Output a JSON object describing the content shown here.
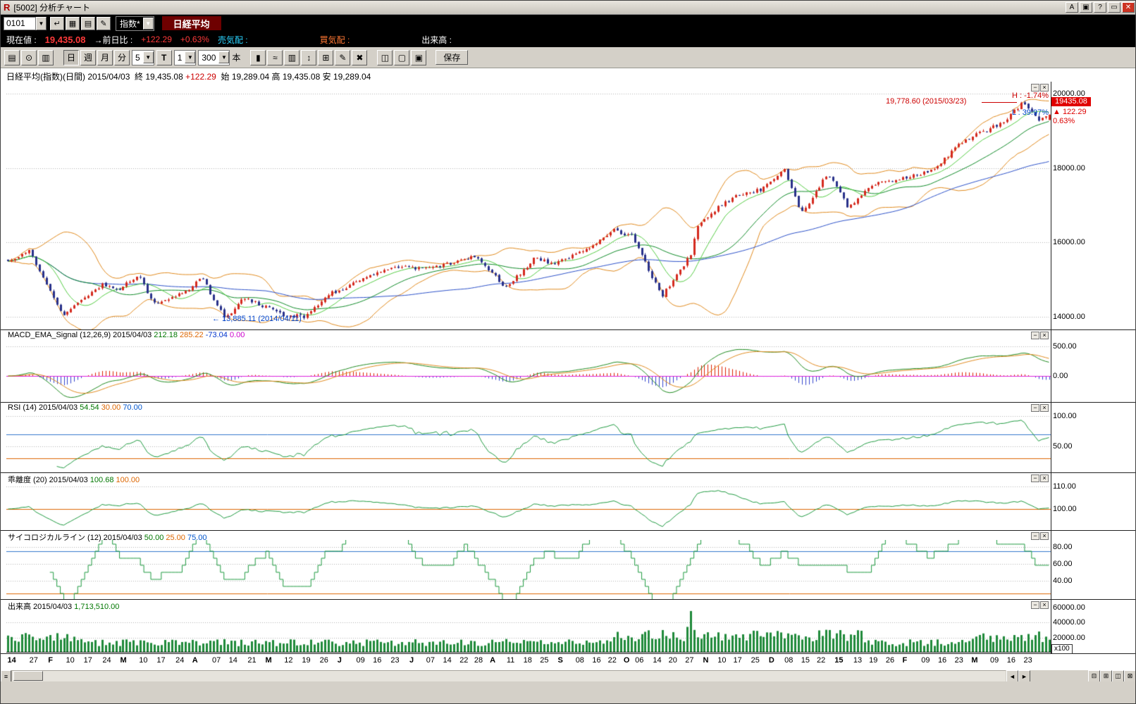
{
  "window": {
    "title": "[5002]  分析チャート",
    "title_buttons": [
      {
        "name": "font-size-button",
        "label": "A"
      },
      {
        "name": "duplicate-window-button",
        "label": "▣"
      },
      {
        "name": "help-button",
        "label": "?"
      },
      {
        "name": "maximize-button",
        "label": "▭"
      },
      {
        "name": "close-button",
        "label": "✕"
      }
    ]
  },
  "symbol_bar": {
    "code": "0101",
    "icon_buttons": [
      {
        "name": "enter-symbol-button",
        "glyph": "↵"
      },
      {
        "name": "board-button",
        "glyph": "▦"
      },
      {
        "name": "list-button",
        "glyph": "▤"
      },
      {
        "name": "edit-button",
        "glyph": "✎"
      }
    ],
    "market_select": "指数*",
    "symbol_name": "日経平均"
  },
  "quote_bar": {
    "current_label": "現在値 :",
    "current_value": "19,435.08",
    "change_label": "→前日比 :",
    "change_value": "+122.29",
    "change_percent": "+0.63%",
    "ask_label": "売気配 :",
    "ask_value": "",
    "bid_label": "買気配 :",
    "bid_value": "",
    "volume_label": "出来高 :",
    "volume_value": ""
  },
  "chart_toolbar": {
    "left_buttons": [
      {
        "name": "print-button",
        "glyph": "▤"
      },
      {
        "name": "zoom-button",
        "glyph": "⊙"
      },
      {
        "name": "settings-button",
        "glyph": "▥"
      }
    ],
    "period_buttons": [
      {
        "name": "period-day-button",
        "label": "日",
        "active": true
      },
      {
        "name": "period-week-button",
        "label": "週",
        "active": false
      },
      {
        "name": "period-month-button",
        "label": "月",
        "active": false
      },
      {
        "name": "period-minute-button",
        "label": "分",
        "active": false
      }
    ],
    "minute_select": "5",
    "tick_button": "T",
    "interval_select": "1",
    "bars_select": "300",
    "bars_unit": "本",
    "type_buttons": [
      {
        "name": "candle-type-button",
        "glyph": "▮"
      },
      {
        "name": "line-type-button",
        "glyph": "≈"
      },
      {
        "name": "bar-type-button",
        "glyph": "▥"
      },
      {
        "name": "highlow-type-button",
        "glyph": "↕"
      },
      {
        "name": "grid-toggle-button",
        "glyph": "⊞"
      },
      {
        "name": "draw-button",
        "glyph": "✎"
      },
      {
        "name": "erase-button",
        "glyph": "✖"
      }
    ],
    "right_buttons": [
      {
        "name": "layout-button",
        "glyph": "◫"
      },
      {
        "name": "new-page-button",
        "glyph": "▢"
      },
      {
        "name": "copy-page-button",
        "glyph": "▣"
      }
    ],
    "save_button": "保存"
  },
  "panel_buttons": {
    "minimize": "−",
    "close": "×"
  },
  "panel_headers": [
    {
      "segments": [
        {
          "t": "日経平均(指数)(日間) 2015/04/03  ",
          "c": "#000000"
        },
        {
          "t": "終 19,435.08 ",
          "c": "#000000"
        },
        {
          "t": "+122.29",
          "c": "#cc0000"
        },
        {
          "t": "  始 19,289.04 高 19,435.08 安 19,289.04",
          "c": "#000000"
        }
      ]
    },
    {
      "segments": [
        {
          "t": "MACD_EMA_Signal (12,26,9) 2015/04/03 ",
          "c": "#000000"
        },
        {
          "t": "212.18 ",
          "c": "#007700"
        },
        {
          "t": "285.22 ",
          "c": "#dd6600"
        },
        {
          "t": "-73.04 ",
          "c": "#0033cc"
        },
        {
          "t": "0.00",
          "c": "#cc00cc"
        }
      ]
    },
    {
      "segments": [
        {
          "t": "RSI (14) 2015/04/03 ",
          "c": "#000000"
        },
        {
          "t": "54.54 ",
          "c": "#007700"
        },
        {
          "t": "30.00 ",
          "c": "#dd6600"
        },
        {
          "t": "70.00",
          "c": "#0055cc"
        }
      ]
    },
    {
      "segments": [
        {
          "t": "乖離度 (20) 2015/04/03 ",
          "c": "#000000"
        },
        {
          "t": "100.68 ",
          "c": "#007700"
        },
        {
          "t": "100.00",
          "c": "#dd6600"
        }
      ]
    },
    {
      "segments": [
        {
          "t": "サイコロジカルライン (12) 2015/04/03 ",
          "c": "#000000"
        },
        {
          "t": "50.00 ",
          "c": "#007700"
        },
        {
          "t": "25.00 ",
          "c": "#dd6600"
        },
        {
          "t": "75.00",
          "c": "#0055cc"
        }
      ]
    },
    {
      "segments": [
        {
          "t": "出来高 2015/04/03 ",
          "c": "#000000"
        },
        {
          "t": "1,713,510.00",
          "c": "#007700"
        }
      ]
    }
  ],
  "annotations": {
    "high_low": {
      "high_label": "H : -1.74%",
      "low_label": "L : 39.97%",
      "high_color": "#cc0000",
      "low_color": "#0044cc"
    },
    "peak": {
      "text": "19,778.60 (2015/03/23)",
      "color": "#cc0000"
    },
    "trough": {
      "text": "← 13,885.11 (2014/04/11)",
      "color": "#0044cc"
    },
    "last_price": {
      "value": "19435.08",
      "change": "▲ 122.29",
      "percent": "0.63%",
      "bg": "#e00000",
      "fg": "#dd0000"
    }
  },
  "x_axis": {
    "labels": [
      [
        "14",
        0.001,
        1
      ],
      [
        "27",
        0.022,
        0
      ],
      [
        "F",
        0.04,
        1
      ],
      [
        "10",
        0.057,
        0
      ],
      [
        "17",
        0.074,
        0
      ],
      [
        "24",
        0.092,
        0
      ],
      [
        "M",
        0.109,
        1
      ],
      [
        "10",
        0.127,
        0
      ],
      [
        "17",
        0.144,
        0
      ],
      [
        "24",
        0.162,
        0
      ],
      [
        "A",
        0.178,
        1
      ],
      [
        "07",
        0.197,
        0
      ],
      [
        "14",
        0.213,
        0
      ],
      [
        "21",
        0.231,
        0
      ],
      [
        "M",
        0.248,
        1
      ],
      [
        "12",
        0.266,
        0
      ],
      [
        "19",
        0.283,
        0
      ],
      [
        "26",
        0.3,
        0
      ],
      [
        "J",
        0.317,
        1
      ],
      [
        "09",
        0.335,
        0
      ],
      [
        "16",
        0.351,
        0
      ],
      [
        "23",
        0.368,
        0
      ],
      [
        "J",
        0.386,
        1
      ],
      [
        "07",
        0.402,
        0
      ],
      [
        "14",
        0.418,
        0
      ],
      [
        "22",
        0.434,
        0
      ],
      [
        "28",
        0.448,
        0
      ],
      [
        "A",
        0.463,
        1
      ],
      [
        "11",
        0.479,
        0
      ],
      [
        "18",
        0.495,
        0
      ],
      [
        "25",
        0.511,
        0
      ],
      [
        "S",
        0.528,
        1
      ],
      [
        "08",
        0.545,
        0
      ],
      [
        "16",
        0.561,
        0
      ],
      [
        "22",
        0.576,
        0
      ],
      [
        "O",
        0.591,
        1
      ],
      [
        "06",
        0.602,
        0
      ],
      [
        "14",
        0.619,
        0
      ],
      [
        "20",
        0.634,
        0
      ],
      [
        "27",
        0.65,
        0
      ],
      [
        "N",
        0.667,
        1
      ],
      [
        "10",
        0.681,
        0
      ],
      [
        "17",
        0.696,
        0
      ],
      [
        "25",
        0.713,
        0
      ],
      [
        "D",
        0.73,
        1
      ],
      [
        "08",
        0.745,
        0
      ],
      [
        "15",
        0.761,
        0
      ],
      [
        "22",
        0.776,
        0
      ],
      [
        "15",
        0.793,
        1
      ],
      [
        "13",
        0.811,
        0
      ],
      [
        "19",
        0.826,
        0
      ],
      [
        "26",
        0.842,
        0
      ],
      [
        "F",
        0.858,
        1
      ],
      [
        "09",
        0.876,
        0
      ],
      [
        "16",
        0.892,
        0
      ],
      [
        "23",
        0.908,
        0
      ],
      [
        "M",
        0.924,
        1
      ],
      [
        "09",
        0.942,
        0
      ],
      [
        "16",
        0.958,
        0
      ],
      [
        "23",
        0.974,
        0
      ]
    ]
  },
  "scrollbar": {
    "grip": "≡",
    "nav_buttons": [
      {
        "name": "scroll-left-button",
        "glyph": "◄"
      },
      {
        "name": "scroll-right-button",
        "glyph": "►"
      }
    ],
    "corner_buttons": [
      {
        "name": "strip-minimize-button",
        "glyph": "⊟"
      },
      {
        "name": "strip-tile-button",
        "glyph": "⊞"
      },
      {
        "name": "strip-cascade-button",
        "glyph": "◫"
      },
      {
        "name": "strip-close-button",
        "glyph": "⊠"
      }
    ]
  },
  "chart_data": {
    "type": "candlestick",
    "symbol": "日経平均",
    "timeframe": "日間",
    "date": "2015/04/03",
    "bars": 300,
    "ohlc_last": {
      "open": 19289.04,
      "high": 19435.08,
      "low": 19289.04,
      "close": 19435.08,
      "change": 122.29,
      "change_pct": 0.63
    },
    "price_anchors": [
      [
        0.001,
        15450
      ],
      [
        0.02,
        15800
      ],
      [
        0.052,
        14010
      ],
      [
        0.075,
        14550
      ],
      [
        0.09,
        14860
      ],
      [
        0.105,
        14700
      ],
      [
        0.125,
        15120
      ],
      [
        0.14,
        14350
      ],
      [
        0.155,
        14450
      ],
      [
        0.172,
        14700
      ],
      [
        0.186,
        15050
      ],
      [
        0.208,
        13940
      ],
      [
        0.225,
        14510
      ],
      [
        0.245,
        14300
      ],
      [
        0.262,
        14070
      ],
      [
        0.285,
        14000
      ],
      [
        0.31,
        14630
      ],
      [
        0.34,
        15000
      ],
      [
        0.37,
        15360
      ],
      [
        0.395,
        15300
      ],
      [
        0.42,
        15400
      ],
      [
        0.45,
        15620
      ],
      [
        0.478,
        14790
      ],
      [
        0.505,
        15560
      ],
      [
        0.525,
        15430
      ],
      [
        0.555,
        15780
      ],
      [
        0.582,
        16340
      ],
      [
        0.6,
        16150
      ],
      [
        0.628,
        14550
      ],
      [
        0.645,
        15250
      ],
      [
        0.655,
        15650
      ],
      [
        0.662,
        16420
      ],
      [
        0.68,
        16900
      ],
      [
        0.7,
        17250
      ],
      [
        0.727,
        17460
      ],
      [
        0.745,
        18000
      ],
      [
        0.762,
        16780
      ],
      [
        0.787,
        17850
      ],
      [
        0.8,
        17300
      ],
      [
        0.807,
        16920
      ],
      [
        0.826,
        17510
      ],
      [
        0.85,
        17670
      ],
      [
        0.886,
        17900
      ],
      [
        0.92,
        18780
      ],
      [
        0.94,
        19000
      ],
      [
        0.957,
        19250
      ],
      [
        0.974,
        19750
      ],
      [
        0.982,
        19560
      ],
      [
        0.99,
        19290
      ],
      [
        1.0,
        19435
      ]
    ],
    "forced": {
      "low": {
        "f": 0.208,
        "value": 13885.11,
        "label": "13,885.11 (2014/04/11)"
      },
      "high": {
        "f": 0.974,
        "value": 19778.6,
        "label": "19,778.60 (2015/03/23)"
      }
    },
    "panels": [
      {
        "id": "price",
        "ylim": [
          13660,
          20320
        ],
        "yticks": [
          {
            "v": 20000,
            "label": "20000.00"
          },
          {
            "v": 18000,
            "label": "18000.00"
          },
          {
            "v": 16000,
            "label": "16000.00"
          },
          {
            "v": 14000,
            "label": "14000.00"
          }
        ],
        "colors": {
          "up": "#d42a1e",
          "down": "#28308a",
          "ma_short": "#55cc44",
          "ma_mid": "#0f8a28",
          "ma_long": "#2b50c8",
          "band": "#e08a1e"
        },
        "overlays": [
          "SMA10",
          "SMA25",
          "SMA75",
          "Bollinger(20,±2σ)"
        ]
      },
      {
        "id": "macd",
        "params": "12,26,9",
        "last": {
          "macd": 212.18,
          "signal": 285.22,
          "hist": -73.04,
          "zero": 0.0
        },
        "ylim": [
          -440,
          620
        ],
        "yticks": [
          {
            "v": 500,
            "label": "500.00"
          },
          {
            "v": 0,
            "label": "0.00"
          }
        ],
        "colors": {
          "macd": "#1f8a1f",
          "signal": "#e08a1e",
          "hist_up": "#dd2200",
          "hist_down": "#3344cc",
          "zero": "#dd22dd"
        }
      },
      {
        "id": "rsi",
        "period": 14,
        "last": 54.54,
        "ylim": [
          7,
          107
        ],
        "yticks": [
          {
            "v": 100,
            "label": "100.00"
          },
          {
            "v": 50,
            "label": "50.00"
          }
        ],
        "hlines": [
          {
            "v": 70,
            "color": "#3377cc"
          },
          {
            "v": 30,
            "color": "#dd6600"
          }
        ],
        "color": "#1f9a40"
      },
      {
        "id": "deviation",
        "period": 20,
        "last": 100.68,
        "ylim": [
          90.6,
          111.9
        ],
        "yticks": [
          {
            "v": 110,
            "label": "110.00"
          },
          {
            "v": 100,
            "label": "100.00"
          }
        ],
        "hlines": [
          {
            "v": 100,
            "color": "#dd6600"
          }
        ],
        "color": "#1f9a40"
      },
      {
        "id": "psychological",
        "period": 12,
        "last": 50.0,
        "ylim": [
          18.3,
          88.3
        ],
        "yticks": [
          {
            "v": 80,
            "label": "80.00"
          },
          {
            "v": 60,
            "label": "60.00"
          },
          {
            "v": 40,
            "label": "40.00"
          }
        ],
        "hlines": [
          {
            "v": 75,
            "color": "#3377cc"
          },
          {
            "v": 25,
            "color": "#dd6600"
          }
        ],
        "color": "#1f9a40"
      },
      {
        "id": "volume",
        "last": 1713510.0,
        "unit": "x100",
        "ylim": [
          0,
          57700
        ],
        "yticks": [
          {
            "v": 60000,
            "label": "60000.00"
          },
          {
            "v": 40000,
            "label": "40000.00"
          },
          {
            "v": 20000,
            "label": "20000.00"
          }
        ],
        "spike": {
          "f": 0.655,
          "value": 55000
        },
        "color": "#1f8a3a"
      }
    ]
  }
}
